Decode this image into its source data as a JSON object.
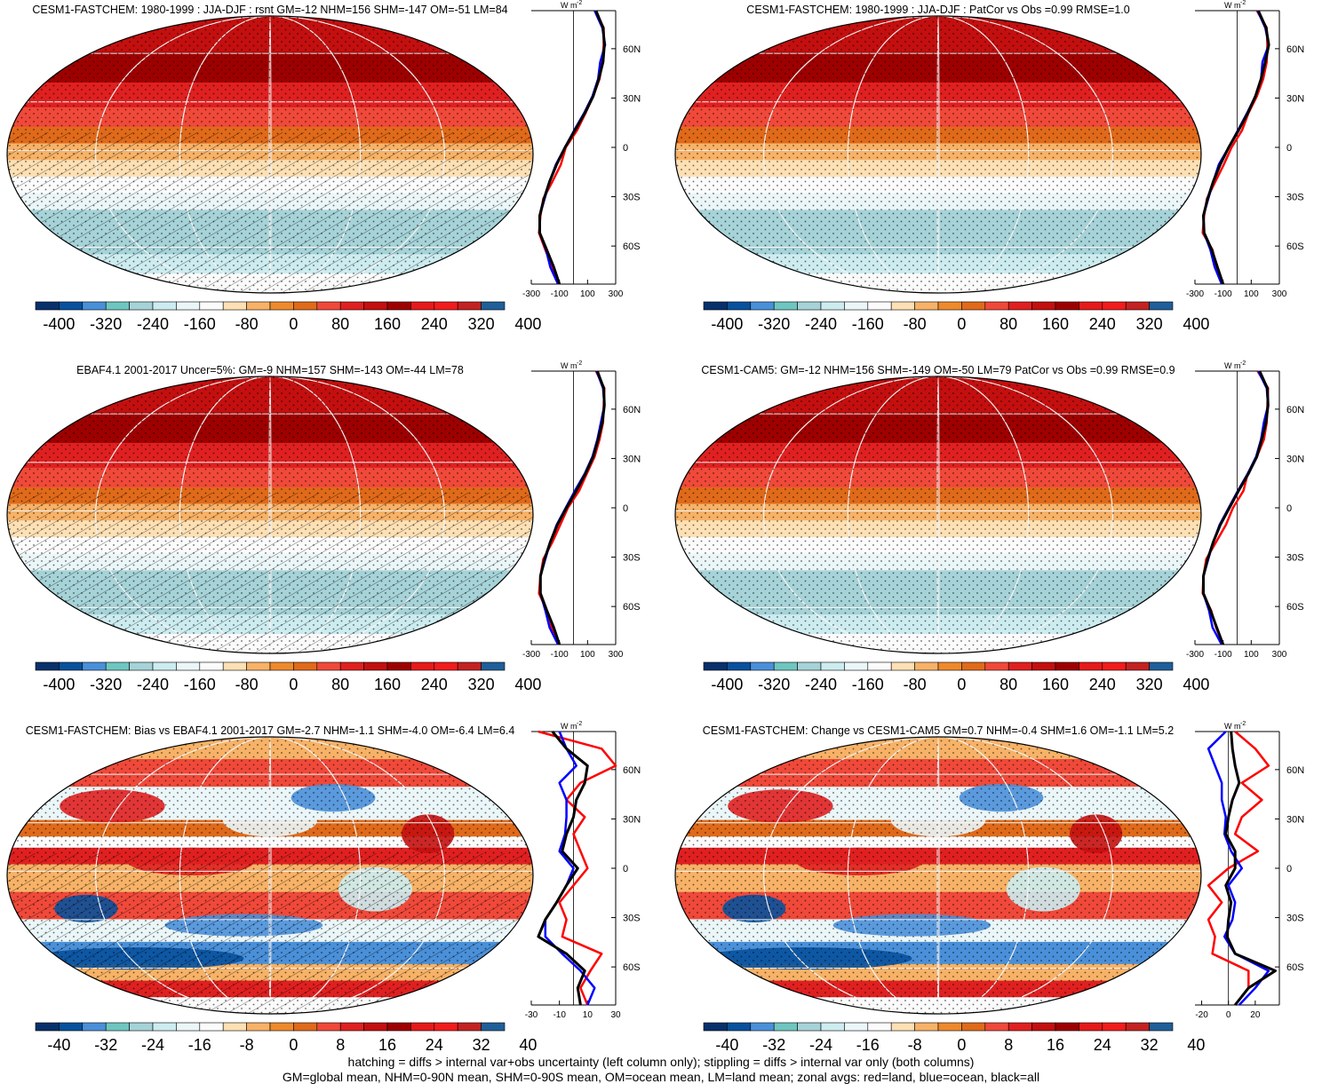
{
  "panels": [
    {
      "title": "CESM1-FASTCHEM: 1980-1999 : JJA-DJF : rsnt GM=-12 NHM=156 SHM=-147 OM=-51 LM=84",
      "kind": "abs",
      "hatching": true,
      "zonal_scale": {
        "ticks": [
          "-300",
          "-100",
          "100",
          "300"
        ],
        "xlim": [
          -300,
          300
        ]
      },
      "zonal_label": "W m",
      "colorbar_labels": [
        "-400",
        "-320",
        "-240",
        "-160",
        "-80",
        "0",
        "80",
        "160",
        "240",
        "320",
        "400"
      ]
    },
    {
      "title": "CESM1-FASTCHEM: 1980-1999 : JJA-DJF : PatCor vs Obs =0.99 RMSE=1.0",
      "kind": "abs",
      "hatching": false,
      "zonal_scale": {
        "ticks": [
          "-300",
          "-100",
          "100",
          "300"
        ],
        "xlim": [
          -300,
          300
        ]
      },
      "zonal_label": "W m",
      "colorbar_labels": [
        "-400",
        "-320",
        "-240",
        "-160",
        "-80",
        "0",
        "80",
        "160",
        "240",
        "320",
        "400"
      ]
    },
    {
      "title": "EBAF4.1 2001-2017 Uncer=5%: GM=-9 NHM=157 SHM=-143 OM=-44 LM=78",
      "kind": "abs",
      "hatching": true,
      "zonal_scale": {
        "ticks": [
          "-300",
          "-100",
          "100",
          "300"
        ],
        "xlim": [
          -300,
          300
        ]
      },
      "zonal_label": "W m",
      "colorbar_labels": [
        "-400",
        "-320",
        "-240",
        "-160",
        "-80",
        "0",
        "80",
        "160",
        "240",
        "320",
        "400"
      ]
    },
    {
      "title": "CESM1-CAM5: GM=-12 NHM=156 SHM=-149 OM=-50 LM=79 PatCor vs Obs =0.99 RMSE=0.9",
      "kind": "abs",
      "hatching": false,
      "zonal_scale": {
        "ticks": [
          "-300",
          "-100",
          "100",
          "300"
        ],
        "xlim": [
          -300,
          300
        ]
      },
      "zonal_label": "W m",
      "colorbar_labels": [
        "-400",
        "-320",
        "-240",
        "-160",
        "-80",
        "0",
        "80",
        "160",
        "240",
        "320",
        "400"
      ]
    },
    {
      "title": "CESM1-FASTCHEM: Bias vs EBAF4.1 2001-2017 GM=-2.7 NHM=-1.1 SHM=-4.0 OM=-6.4 LM=6.4",
      "kind": "diff",
      "hatching": true,
      "zonal_scale": {
        "ticks": [
          "-30",
          "-10",
          "10",
          "30"
        ],
        "xlim": [
          -30,
          30
        ]
      },
      "zonal_label": "W m",
      "colorbar_labels": [
        "-40",
        "-32",
        "-24",
        "-16",
        "-8",
        "0",
        "8",
        "16",
        "24",
        "32",
        "40"
      ]
    },
    {
      "title": "CESM1-FASTCHEM: Change vs CESM1-CAM5 GM=0.7 NHM=-0.4 SHM=1.6 OM=-1.1 LM=5.2",
      "kind": "diff",
      "hatching": false,
      "zonal_scale": {
        "ticks": [
          "-20",
          "0",
          "20"
        ],
        "xlim": [
          -25,
          38
        ]
      },
      "zonal_label": "W m",
      "colorbar_labels": [
        "-40",
        "-32",
        "-24",
        "-16",
        "-8",
        "0",
        "8",
        "16",
        "24",
        "32",
        "40"
      ]
    }
  ],
  "lat_labels": [
    "60N",
    "30N",
    "0",
    "30S",
    "60S"
  ],
  "zonal_unit_exp": "-2",
  "colormap": [
    "#08306b",
    "#08519c",
    "#4a90d9",
    "#6ec6c0",
    "#a6d3d8",
    "#ccecf0",
    "#eaf6f8",
    "#fbfbfb",
    "#fde0b4",
    "#f7b267",
    "#ee8a2c",
    "#e06a1a",
    "#f0493a",
    "#e02020",
    "#c40f0f",
    "#9e0000",
    "#e61a1a",
    "#f21c1c",
    "#c42222",
    "#1f5f99"
  ],
  "series_colors": {
    "land": "#ff0000",
    "ocean": "#0000ff",
    "all": "#000000"
  },
  "footer": {
    "line1": "hatching = diffs > internal var+obs uncertainty (left column only); stippling = diffs > internal var only (both columns)",
    "line2": "GM=global mean, NHM=0-90N mean, SHM=0-90S mean, OM=ocean mean, LM=land mean; zonal avgs: red=land, blue=ocean, black=all"
  },
  "chart_data": [
    {
      "type": "heatmap",
      "title": "CESM1-FASTCHEM: 1980-1999 : JJA-DJF : rsnt GM=-12 NHM=156 SHM=-147 OM=-51 LM=84",
      "colorbar": [
        -400,
        400
      ],
      "zonal": {
        "xlim": [
          -300,
          300
        ],
        "lat": [
          80,
          70,
          60,
          50,
          40,
          30,
          20,
          10,
          0,
          -10,
          -20,
          -30,
          -40,
          -50,
          -60,
          -70,
          -80
        ],
        "all": [
          160,
          210,
          220,
          210,
          180,
          140,
          80,
          10,
          -60,
          -120,
          -170,
          -210,
          -240,
          -240,
          -190,
          -140,
          -100
        ],
        "land": [
          155,
          215,
          215,
          205,
          185,
          140,
          85,
          25,
          -55,
          -90,
          -150,
          -215,
          -235,
          -245,
          -200,
          -150,
          -100
        ],
        "ocean": [
          150,
          205,
          225,
          190,
          175,
          135,
          75,
          5,
          -60,
          -125,
          -170,
          -205,
          -240,
          -240,
          -195,
          -165,
          -110
        ]
      }
    },
    {
      "type": "heatmap",
      "title": "CESM1-FASTCHEM: 1980-1999 : JJA-DJF : PatCor vs Obs =0.99 RMSE=1.0",
      "colorbar": [
        -400,
        400
      ],
      "zonal": {
        "xlim": [
          -300,
          300
        ],
        "lat": [
          80,
          70,
          60,
          50,
          40,
          30,
          20,
          10,
          0,
          -10,
          -20,
          -30,
          -40,
          -50,
          -60,
          -70,
          -80
        ],
        "all": [
          150,
          205,
          225,
          200,
          170,
          130,
          75,
          10,
          -60,
          -120,
          -170,
          -210,
          -240,
          -235,
          -180,
          -140,
          -100
        ],
        "land": [
          140,
          210,
          215,
          210,
          185,
          140,
          80,
          35,
          -40,
          -95,
          -155,
          -215,
          -235,
          -245,
          -175,
          -150,
          -100
        ],
        "ocean": [
          145,
          200,
          225,
          180,
          170,
          130,
          70,
          5,
          -60,
          -130,
          -170,
          -205,
          -240,
          -235,
          -190,
          -160,
          -110
        ]
      }
    },
    {
      "type": "heatmap",
      "title": "EBAF4.1 2001-2017 Uncer=5%: GM=-9 NHM=157 SHM=-143 OM=-44 LM=78",
      "colorbar": [
        -400,
        400
      ],
      "zonal": {
        "xlim": [
          -300,
          300
        ],
        "lat": [
          80,
          70,
          60,
          50,
          40,
          30,
          20,
          10,
          0,
          -10,
          -20,
          -30,
          -40,
          -50,
          -60,
          -70,
          -80
        ],
        "all": [
          170,
          215,
          220,
          205,
          175,
          140,
          85,
          20,
          -50,
          -115,
          -165,
          -205,
          -235,
          -235,
          -190,
          -140,
          -100
        ],
        "land": [
          160,
          220,
          215,
          210,
          185,
          150,
          95,
          40,
          -40,
          -95,
          -150,
          -215,
          -235,
          -245,
          -190,
          -155,
          -100
        ],
        "ocean": [
          165,
          210,
          220,
          195,
          170,
          135,
          80,
          10,
          -55,
          -120,
          -165,
          -200,
          -235,
          -235,
          -200,
          -170,
          -110
        ]
      }
    },
    {
      "type": "heatmap",
      "title": "CESM1-CAM5: GM=-12 NHM=156 SHM=-149 OM=-50 LM=79 PatCor vs Obs =0.99 RMSE=0.9",
      "colorbar": [
        -400,
        400
      ],
      "zonal": {
        "xlim": [
          -300,
          300
        ],
        "lat": [
          80,
          70,
          60,
          50,
          40,
          30,
          20,
          10,
          0,
          -10,
          -20,
          -30,
          -40,
          -50,
          -60,
          -70,
          -80
        ],
        "all": [
          160,
          215,
          220,
          205,
          175,
          140,
          80,
          10,
          -55,
          -120,
          -170,
          -210,
          -240,
          -240,
          -190,
          -145,
          -100
        ],
        "land": [
          145,
          220,
          215,
          210,
          190,
          140,
          75,
          45,
          -30,
          -80,
          -150,
          -220,
          -240,
          -245,
          -185,
          -150,
          -100
        ],
        "ocean": [
          150,
          210,
          220,
          190,
          170,
          135,
          75,
          5,
          -60,
          -125,
          -170,
          -205,
          -240,
          -240,
          -200,
          -175,
          -110
        ]
      }
    },
    {
      "type": "heatmap",
      "title": "CESM1-FASTCHEM: Bias vs EBAF4.1 2001-2017 GM=-2.7 NHM=-1.1 SHM=-4.0 OM=-6.4 LM=6.4",
      "colorbar": [
        -40,
        40
      ],
      "zonal": {
        "xlim": [
          -30,
          30
        ],
        "lat": [
          80,
          70,
          60,
          50,
          40,
          30,
          20,
          10,
          0,
          -10,
          -20,
          -30,
          -40,
          -50,
          -60,
          -70,
          -80
        ],
        "all": [
          -15,
          -5,
          10,
          8,
          2,
          0,
          -5,
          -8,
          3,
          -5,
          -12,
          -20,
          -25,
          -5,
          8,
          3,
          5
        ],
        "land": [
          -25,
          20,
          30,
          5,
          -5,
          8,
          0,
          5,
          10,
          0,
          -10,
          -5,
          -8,
          20,
          12,
          5,
          10
        ],
        "ocean": [
          -10,
          -5,
          2,
          -10,
          -5,
          -5,
          -6,
          -10,
          0,
          -5,
          -12,
          -20,
          -20,
          -8,
          5,
          15,
          10
        ]
      }
    },
    {
      "type": "heatmap",
      "title": "CESM1-FASTCHEM: Change vs CESM1-CAM5 GM=0.7 NHM=-0.4 SHM=1.6 OM=-1.1 LM=5.2",
      "colorbar": [
        -40,
        40
      ],
      "zonal": {
        "xlim": [
          -25,
          38
        ],
        "lat": [
          80,
          70,
          60,
          50,
          40,
          30,
          20,
          10,
          0,
          -10,
          -20,
          -30,
          -40,
          -50,
          -60,
          -70,
          -80
        ],
        "all": [
          2,
          3,
          5,
          8,
          3,
          0,
          -2,
          5,
          5,
          -2,
          2,
          0,
          -1,
          5,
          35,
          15,
          5
        ],
        "land": [
          5,
          20,
          30,
          10,
          25,
          10,
          5,
          22,
          0,
          -15,
          -5,
          -15,
          -10,
          -12,
          15,
          15,
          5
        ],
        "ocean": [
          -2,
          -15,
          -10,
          -5,
          -5,
          -2,
          -3,
          2,
          10,
          0,
          5,
          3,
          -3,
          5,
          30,
          20,
          8
        ]
      }
    }
  ]
}
